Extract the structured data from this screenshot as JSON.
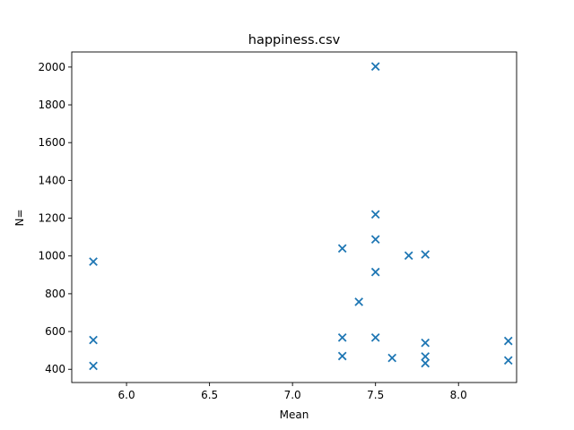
{
  "chart_data": {
    "type": "scatter",
    "title": "happiness.csv",
    "xlabel": "Mean",
    "ylabel": "N=",
    "xlim": [
      5.67,
      8.35
    ],
    "ylim": [
      330,
      2080
    ],
    "xticks": [
      6.0,
      6.5,
      7.0,
      7.5,
      8.0
    ],
    "yticks": [
      400,
      600,
      800,
      1000,
      1200,
      1400,
      1600,
      1800,
      2000
    ],
    "marker": "x",
    "color": "#1f77b4",
    "grid": false,
    "points": [
      {
        "x": 5.8,
        "y": 970
      },
      {
        "x": 5.8,
        "y": 555
      },
      {
        "x": 5.8,
        "y": 418
      },
      {
        "x": 7.3,
        "y": 1040
      },
      {
        "x": 7.3,
        "y": 568
      },
      {
        "x": 7.3,
        "y": 470
      },
      {
        "x": 7.4,
        "y": 757
      },
      {
        "x": 7.5,
        "y": 2003
      },
      {
        "x": 7.5,
        "y": 1220
      },
      {
        "x": 7.5,
        "y": 1088
      },
      {
        "x": 7.5,
        "y": 915
      },
      {
        "x": 7.5,
        "y": 568
      },
      {
        "x": 7.6,
        "y": 460
      },
      {
        "x": 7.7,
        "y": 1002
      },
      {
        "x": 7.8,
        "y": 1008
      },
      {
        "x": 7.8,
        "y": 540
      },
      {
        "x": 7.8,
        "y": 468
      },
      {
        "x": 7.8,
        "y": 432
      },
      {
        "x": 8.3,
        "y": 550
      },
      {
        "x": 8.3,
        "y": 447
      }
    ]
  }
}
